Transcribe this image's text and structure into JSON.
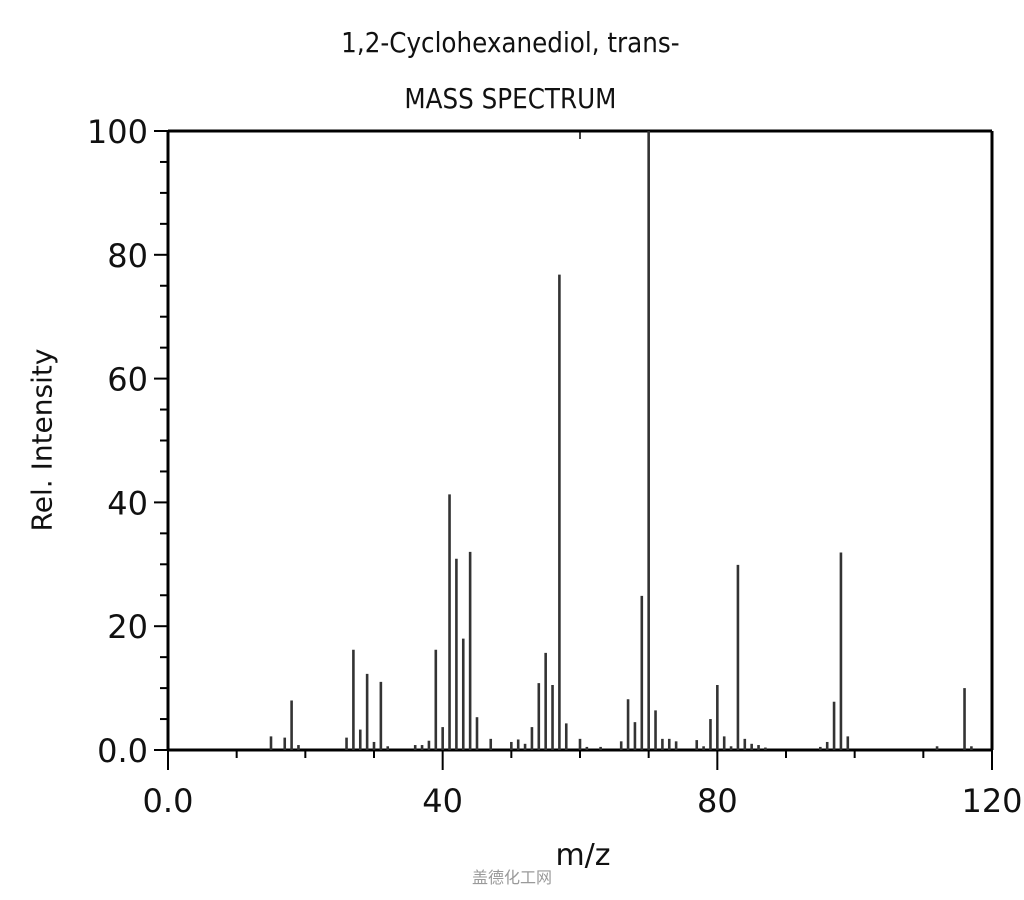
{
  "chart_data": {
    "type": "bar",
    "subtype": "mass-spectrum-stick",
    "title": "1,2-Cyclohexanediol, trans-",
    "subtitle": "MASS SPECTRUM",
    "xlabel": "m/z",
    "ylabel": "Rel. Intensity",
    "xlim": [
      0,
      120
    ],
    "ylim": [
      0,
      100
    ],
    "x_ticks": [
      "0.0",
      "40",
      "80",
      "120"
    ],
    "y_ticks": [
      "0.0",
      "20",
      "40",
      "60",
      "80",
      "100"
    ],
    "grid": false,
    "legend": null,
    "x": [
      15,
      17,
      18,
      19,
      26,
      27,
      28,
      29,
      30,
      31,
      32,
      36,
      37,
      38,
      39,
      40,
      41,
      42,
      43,
      44,
      45,
      47,
      50,
      51,
      52,
      53,
      54,
      55,
      56,
      57,
      58,
      60,
      61,
      63,
      66,
      67,
      68,
      69,
      70,
      71,
      72,
      73,
      74,
      77,
      78,
      79,
      80,
      81,
      82,
      83,
      84,
      85,
      86,
      87,
      95,
      96,
      97,
      98,
      99,
      112,
      116,
      117
    ],
    "values": [
      2.2,
      2.0,
      8.0,
      0.8,
      2.0,
      16.2,
      3.3,
      12.3,
      1.3,
      11.0,
      0.6,
      0.8,
      0.8,
      1.5,
      16.2,
      3.7,
      41.3,
      30.9,
      18.0,
      32.0,
      5.3,
      1.8,
      1.3,
      1.7,
      1.0,
      3.7,
      10.8,
      15.7,
      10.5,
      76.8,
      4.3,
      1.8,
      0.5,
      0.5,
      1.4,
      8.2,
      4.5,
      24.9,
      100,
      6.4,
      1.8,
      1.8,
      1.4,
      1.6,
      0.6,
      5.0,
      10.5,
      2.2,
      0.6,
      29.9,
      1.8,
      1.0,
      0.8,
      0.4,
      0.5,
      1.3,
      7.8,
      31.9,
      2.2,
      0.6,
      10.0,
      0.6
    ]
  },
  "watermark": "盖德化工网"
}
